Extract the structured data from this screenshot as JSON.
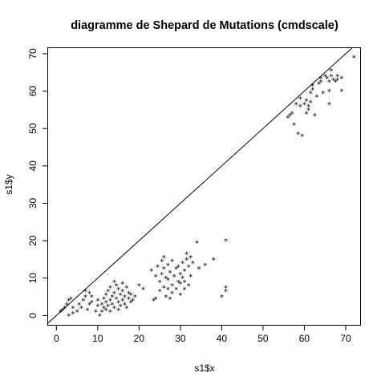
{
  "chart_data": {
    "type": "scatter",
    "title": "diagramme de Shepard de Mutations (cmdscale)",
    "xlabel": "s1$x",
    "ylabel": "s1$y",
    "xlim": [
      -2,
      73.5
    ],
    "ylim": [
      -2.5,
      71.5
    ],
    "x_ticks": [
      0,
      10,
      20,
      30,
      40,
      50,
      60,
      70
    ],
    "y_ticks": [
      0,
      10,
      20,
      30,
      40,
      50,
      60,
      70
    ],
    "grid": false,
    "legend": "none",
    "point_symbol": "*",
    "reference_line": {
      "slope": 1,
      "intercept": 0
    },
    "colors": {
      "points": "#000000",
      "line": "#000000",
      "axes": "#000000"
    },
    "points": [
      [
        1,
        1
      ],
      [
        1.5,
        1.5
      ],
      [
        2,
        2
      ],
      [
        2.5,
        3
      ],
      [
        3,
        4
      ],
      [
        3.5,
        4.5
      ],
      [
        3,
        0
      ],
      [
        4,
        0.5
      ],
      [
        4,
        2
      ],
      [
        5,
        1
      ],
      [
        5.5,
        3
      ],
      [
        6,
        2
      ],
      [
        6.5,
        4
      ],
      [
        7,
        5
      ],
      [
        7,
        6.5
      ],
      [
        7.5,
        1.5
      ],
      [
        8,
        3
      ],
      [
        8,
        6
      ],
      [
        8.5,
        3.5
      ],
      [
        8.5,
        5
      ],
      [
        9.5,
        1
      ],
      [
        10,
        2.5
      ],
      [
        10,
        4
      ],
      [
        10.5,
        0
      ],
      [
        11,
        1
      ],
      [
        11,
        3
      ],
      [
        11.5,
        2
      ],
      [
        11.5,
        4.5
      ],
      [
        12,
        1.5
      ],
      [
        12,
        3.5
      ],
      [
        12,
        5.5
      ],
      [
        12.5,
        2.5
      ],
      [
        12.5,
        6.5
      ],
      [
        13,
        1
      ],
      [
        13,
        4
      ],
      [
        13,
        7.5
      ],
      [
        13.5,
        3
      ],
      [
        13.5,
        5
      ],
      [
        14,
        2
      ],
      [
        14,
        6
      ],
      [
        14,
        9
      ],
      [
        14.5,
        4.5
      ],
      [
        14.5,
        8
      ],
      [
        15,
        1.5
      ],
      [
        15,
        3.5
      ],
      [
        15,
        7
      ],
      [
        15.5,
        5.5
      ],
      [
        15.5,
        2.5
      ],
      [
        16,
        4
      ],
      [
        16,
        6.5
      ],
      [
        16,
        8.5
      ],
      [
        16.5,
        3
      ],
      [
        16.5,
        5
      ],
      [
        17,
        2
      ],
      [
        17,
        7.5
      ],
      [
        17.5,
        4.5
      ],
      [
        17.5,
        6
      ],
      [
        18,
        3.5
      ],
      [
        18,
        5.5
      ],
      [
        18.5,
        4
      ],
      [
        19,
        5
      ],
      [
        20,
        8
      ],
      [
        21,
        7
      ],
      [
        23,
        12
      ],
      [
        23.5,
        4
      ],
      [
        24,
        4.5
      ],
      [
        24,
        10.5
      ],
      [
        24.5,
        13
      ],
      [
        25,
        6.5
      ],
      [
        25,
        9
      ],
      [
        25.5,
        11
      ],
      [
        25.5,
        14.5
      ],
      [
        26,
        7.5
      ],
      [
        26,
        12.5
      ],
      [
        26,
        15.5
      ],
      [
        26.5,
        5
      ],
      [
        26.5,
        10
      ],
      [
        27,
        7
      ],
      [
        27,
        9.5
      ],
      [
        27,
        13.5
      ],
      [
        27.5,
        4.5
      ],
      [
        27.5,
        11.5
      ],
      [
        28,
        6
      ],
      [
        28,
        8
      ],
      [
        28,
        14.5
      ],
      [
        28.5,
        10.5
      ],
      [
        29,
        12.5
      ],
      [
        29,
        7
      ],
      [
        29.5,
        9
      ],
      [
        29.5,
        13
      ],
      [
        30,
        5.5
      ],
      [
        30,
        8.5
      ],
      [
        30,
        11
      ],
      [
        30.5,
        10
      ],
      [
        30.5,
        14
      ],
      [
        31,
        7
      ],
      [
        31,
        9
      ],
      [
        31,
        12
      ],
      [
        31.5,
        16.5
      ],
      [
        31.5,
        15
      ],
      [
        32,
        8
      ],
      [
        32,
        13
      ],
      [
        32.5,
        10.5
      ],
      [
        32.5,
        15.5
      ],
      [
        33,
        14
      ],
      [
        34,
        19.5
      ],
      [
        34.5,
        12.5
      ],
      [
        36,
        13.5
      ],
      [
        38,
        15
      ],
      [
        40,
        5
      ],
      [
        41,
        6.5
      ],
      [
        41,
        7.5
      ],
      [
        41,
        20
      ],
      [
        56,
        53
      ],
      [
        56.5,
        53.5
      ],
      [
        57,
        54
      ],
      [
        57.5,
        51
      ],
      [
        58,
        56.5
      ],
      [
        58.5,
        48.5
      ],
      [
        59,
        56
      ],
      [
        59,
        58
      ],
      [
        59.5,
        48
      ],
      [
        60,
        56.5
      ],
      [
        60.5,
        57.5
      ],
      [
        60.5,
        54
      ],
      [
        61,
        55
      ],
      [
        61,
        56
      ],
      [
        61.5,
        57
      ],
      [
        61.5,
        59.5
      ],
      [
        62,
        60.5
      ],
      [
        62,
        61.5
      ],
      [
        62.5,
        53.5
      ],
      [
        63,
        58.5
      ],
      [
        63.5,
        62
      ],
      [
        64,
        62.5
      ],
      [
        64,
        63.5
      ],
      [
        64.5,
        59.5
      ],
      [
        65,
        64
      ],
      [
        65.5,
        63.5
      ],
      [
        66,
        56.5
      ],
      [
        66,
        60
      ],
      [
        66,
        62.5
      ],
      [
        66.5,
        64
      ],
      [
        66.5,
        65.5
      ],
      [
        67,
        63
      ],
      [
        67.5,
        62.5
      ],
      [
        68,
        64
      ],
      [
        68,
        63
      ],
      [
        69,
        60
      ],
      [
        69,
        63.5
      ],
      [
        72,
        69
      ]
    ]
  }
}
